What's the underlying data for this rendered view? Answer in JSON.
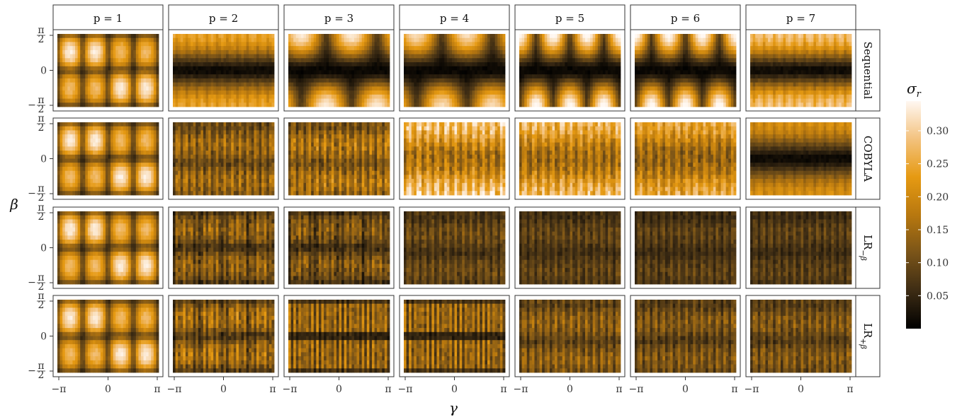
{
  "chart_data": {
    "type": "heatmap",
    "layout": "faceted grid",
    "columns": [
      "p = 1",
      "p = 2",
      "p = 3",
      "p = 4",
      "p = 5",
      "p = 6",
      "p = 7"
    ],
    "rows": [
      {
        "label": "Sequential",
        "sub": ""
      },
      {
        "label": "COBYLA",
        "sub": ""
      },
      {
        "label": "LR",
        "sub": "−β"
      },
      {
        "label": "LR",
        "sub": "+β"
      }
    ],
    "xlabel": "γ",
    "ylabel": "β",
    "xticks": [
      "−π",
      "0",
      "π"
    ],
    "yticks": {
      "top": "π",
      "top_den": "2",
      "mid": "0",
      "bot_sign": "−",
      "bot": "π",
      "bot_den": "2"
    },
    "xlim": [
      "−π",
      "π"
    ],
    "ylim": [
      "−π/2",
      "π/2"
    ],
    "colorbar": {
      "title": "σ",
      "title_sub": "r",
      "ticks": [
        "0.05",
        "0.10",
        "0.15",
        "0.20",
        "0.25",
        "0.30"
      ],
      "tick_values": [
        0.05,
        0.1,
        0.15,
        0.2,
        0.25,
        0.3
      ],
      "range": [
        0.0,
        0.345
      ],
      "colors": [
        "#000000",
        "#3d2c14",
        "#7a5418",
        "#b8780f",
        "#e69a12",
        "#f3c27e",
        "#fff8f2"
      ]
    },
    "grid": {
      "nx": 40,
      "ny": 18
    },
    "cells": [
      {
        "row": 0,
        "col": 0,
        "kind": "blocks",
        "level": 1.0
      },
      {
        "row": 0,
        "col": 1,
        "kind": "band",
        "level": 0.72
      },
      {
        "row": 0,
        "col": 2,
        "kind": "blobs",
        "lobes": 2,
        "level": 0.95
      },
      {
        "row": 0,
        "col": 3,
        "kind": "blobs",
        "lobes": 2,
        "level": 0.9
      },
      {
        "row": 0,
        "col": 4,
        "kind": "blobs",
        "lobes": 3,
        "level": 1.0
      },
      {
        "row": 0,
        "col": 5,
        "kind": "blobs",
        "lobes": 3,
        "level": 1.0
      },
      {
        "row": 0,
        "col": 6,
        "kind": "band",
        "level": 0.85
      },
      {
        "row": 1,
        "col": 0,
        "kind": "blocks",
        "level": 1.0
      },
      {
        "row": 1,
        "col": 1,
        "kind": "noisy",
        "level": 0.62
      },
      {
        "row": 1,
        "col": 2,
        "kind": "noisy",
        "level": 0.7
      },
      {
        "row": 1,
        "col": 3,
        "kind": "noisy-edge",
        "level": 0.78
      },
      {
        "row": 1,
        "col": 4,
        "kind": "noisy-edge",
        "level": 0.72
      },
      {
        "row": 1,
        "col": 5,
        "kind": "noisy-edge",
        "level": 0.66
      },
      {
        "row": 1,
        "col": 6,
        "kind": "band",
        "level": 0.62
      },
      {
        "row": 2,
        "col": 0,
        "kind": "blocks",
        "level": 1.0
      },
      {
        "row": 2,
        "col": 1,
        "kind": "noisy-blocks",
        "level": 0.52
      },
      {
        "row": 2,
        "col": 2,
        "kind": "noisy-blocks",
        "level": 0.46
      },
      {
        "row": 2,
        "col": 3,
        "kind": "noisy",
        "level": 0.42
      },
      {
        "row": 2,
        "col": 4,
        "kind": "noisy",
        "level": 0.38
      },
      {
        "row": 2,
        "col": 5,
        "kind": "noisy",
        "level": 0.36
      },
      {
        "row": 2,
        "col": 6,
        "kind": "noisy",
        "level": 0.36
      },
      {
        "row": 3,
        "col": 0,
        "kind": "blocks",
        "level": 1.0
      },
      {
        "row": 3,
        "col": 1,
        "kind": "noisy-blocks",
        "level": 0.62
      },
      {
        "row": 3,
        "col": 2,
        "kind": "stripes",
        "level": 0.55
      },
      {
        "row": 3,
        "col": 3,
        "kind": "stripes",
        "level": 0.55
      },
      {
        "row": 3,
        "col": 4,
        "kind": "noisy",
        "level": 0.55
      },
      {
        "row": 3,
        "col": 5,
        "kind": "noisy",
        "level": 0.5
      },
      {
        "row": 3,
        "col": 6,
        "kind": "noisy",
        "level": 0.5
      }
    ]
  }
}
